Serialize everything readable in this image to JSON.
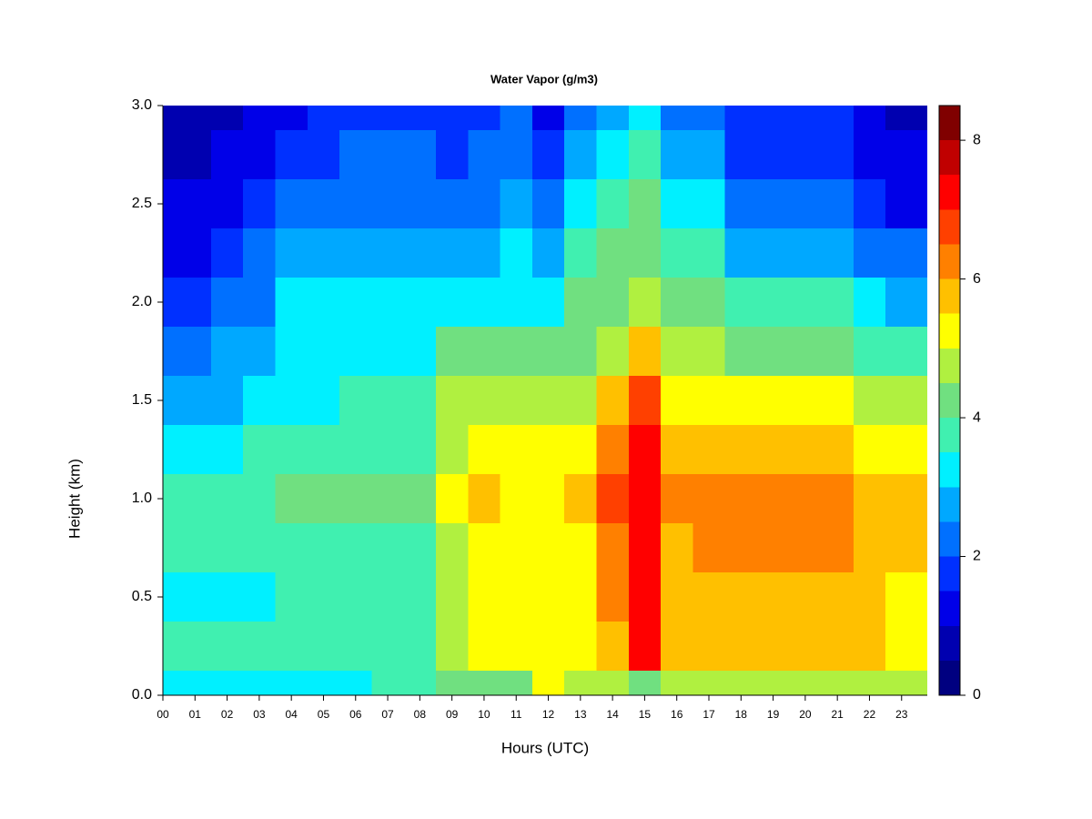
{
  "chart_data": {
    "type": "heatmap",
    "title": "Water Vapor (g/m3)",
    "x_label": "Hours (UTC)",
    "y_label": "Height (km)",
    "x": [
      0,
      1,
      2,
      3,
      4,
      5,
      6,
      7,
      8,
      9,
      10,
      11,
      12,
      13,
      14,
      15,
      16,
      17,
      18,
      19,
      20,
      21,
      22,
      23
    ],
    "y": [
      0,
      0.25,
      0.5,
      0.75,
      1,
      1.25,
      1.5,
      1.75,
      2,
      2.25,
      2.5,
      2.75,
      3
    ],
    "z": [
      [
        3.3,
        3.3,
        3.2,
        3.3,
        3.3,
        3.3,
        3.4,
        3.5,
        3.6,
        4.3,
        4.4,
        4.4,
        5.0,
        4.7,
        4.7,
        4.0,
        4.7,
        4.7,
        4.7,
        4.7,
        4.7,
        4.7,
        4.7,
        4.6
      ],
      [
        3.6,
        3.6,
        3.6,
        3.6,
        3.8,
        3.8,
        3.8,
        3.8,
        3.8,
        4.8,
        5.2,
        5.2,
        5.2,
        5.3,
        5.7,
        7.0,
        5.8,
        5.8,
        5.8,
        5.8,
        5.8,
        5.8,
        5.8,
        5.4
      ],
      [
        3.3,
        3.3,
        3.3,
        3.3,
        3.7,
        3.7,
        3.7,
        3.7,
        3.7,
        4.5,
        5.0,
        5.0,
        5.0,
        5.3,
        6.2,
        7.2,
        5.8,
        5.8,
        5.8,
        5.8,
        5.8,
        5.8,
        5.5,
        5.3
      ],
      [
        3.6,
        3.6,
        3.6,
        3.6,
        3.8,
        3.8,
        3.8,
        3.8,
        3.8,
        4.7,
        5.2,
        5.2,
        5.2,
        5.4,
        6.4,
        7.3,
        5.9,
        6.1,
        6.1,
        6.1,
        6.1,
        6.1,
        5.8,
        5.6
      ],
      [
        3.7,
        3.7,
        3.7,
        3.7,
        4.0,
        4.0,
        4.0,
        4.0,
        4.0,
        5.0,
        5.5,
        5.4,
        5.3,
        5.6,
        6.5,
        7.4,
        6.0,
        6.3,
        6.3,
        6.3,
        6.3,
        6.3,
        5.9,
        5.7
      ],
      [
        3.3,
        3.3,
        3.3,
        3.8,
        3.8,
        3.8,
        3.8,
        3.8,
        3.8,
        4.8,
        5.1,
        5.1,
        5.1,
        5.3,
        6.2,
        7.2,
        5.7,
        5.8,
        5.8,
        5.8,
        5.8,
        5.8,
        5.3,
        5.0
      ],
      [
        2.9,
        2.9,
        2.9,
        3.3,
        3.3,
        3.3,
        3.8,
        3.8,
        3.8,
        4.6,
        4.6,
        4.6,
        4.6,
        4.9,
        5.6,
        6.8,
        5.2,
        5.3,
        5.3,
        5.3,
        5.3,
        5.3,
        4.7,
        4.5
      ],
      [
        2.4,
        2.4,
        2.6,
        2.9,
        3.3,
        3.3,
        3.3,
        3.3,
        3.3,
        4.0,
        4.0,
        4.0,
        4.0,
        4.4,
        4.9,
        5.8,
        4.7,
        4.7,
        4.3,
        4.3,
        4.3,
        4.3,
        3.8,
        3.6
      ],
      [
        1.7,
        1.7,
        2.0,
        2.4,
        3.0,
        3.0,
        3.0,
        3.0,
        3.0,
        3.4,
        3.4,
        3.4,
        3.4,
        4.0,
        4.4,
        4.6,
        4.2,
        4.2,
        3.6,
        3.6,
        3.6,
        3.6,
        3.0,
        2.9
      ],
      [
        1.3,
        1.3,
        1.6,
        2.1,
        2.6,
        2.6,
        2.6,
        2.6,
        2.6,
        2.8,
        2.8,
        3.0,
        2.8,
        3.5,
        4.0,
        4.2,
        3.6,
        3.8,
        2.8,
        2.8,
        2.8,
        2.8,
        2.3,
        2.1
      ],
      [
        1.0,
        1.0,
        1.2,
        1.7,
        2.1,
        2.3,
        2.3,
        2.3,
        2.3,
        2.4,
        2.4,
        2.7,
        2.2,
        3.0,
        3.6,
        4.0,
        3.3,
        3.3,
        2.2,
        2.2,
        2.2,
        2.2,
        1.6,
        1.4
      ],
      [
        0.7,
        0.8,
        1.0,
        1.4,
        1.6,
        1.8,
        2.0,
        2.0,
        2.0,
        1.9,
        2.0,
        2.3,
        1.7,
        2.5,
        3.0,
        3.5,
        2.6,
        2.5,
        1.8,
        1.8,
        1.8,
        1.8,
        1.2,
        1.1
      ],
      [
        0.5,
        0.7,
        0.9,
        1.1,
        1.3,
        1.5,
        1.6,
        1.6,
        1.6,
        1.5,
        1.7,
        2.0,
        1.4,
        2.1,
        2.6,
        3.2,
        2.1,
        2.1,
        1.5,
        1.5,
        1.5,
        1.5,
        1.0,
        0.7
      ]
    ],
    "levels": [
      0,
      0.5,
      1,
      1.5,
      2,
      2.5,
      3,
      3.5,
      4,
      4.5,
      5,
      5.5,
      6,
      6.5,
      7,
      7.5,
      8,
      8.5
    ],
    "colors": [
      "#000080",
      "#0000B0",
      "#0000E8",
      "#0030FF",
      "#0070FF",
      "#00A8FF",
      "#00F0FF",
      "#40F0B0",
      "#70E080",
      "#B0F040",
      "#FFFF00",
      "#FFC000",
      "#FF8000",
      "#FF4000",
      "#FF0000",
      "#C00000",
      "#800000"
    ],
    "xlim": [
      0,
      23.8
    ],
    "ylim": [
      0,
      3
    ],
    "xticks": [
      {
        "value": 0,
        "label": "00"
      },
      {
        "value": 1,
        "label": "01"
      },
      {
        "value": 2,
        "label": "02"
      },
      {
        "value": 3,
        "label": "03"
      },
      {
        "value": 4,
        "label": "04"
      },
      {
        "value": 5,
        "label": "05"
      },
      {
        "value": 6,
        "label": "06"
      },
      {
        "value": 7,
        "label": "07"
      },
      {
        "value": 8,
        "label": "08"
      },
      {
        "value": 9,
        "label": "09"
      },
      {
        "value": 10,
        "label": "10"
      },
      {
        "value": 11,
        "label": "11"
      },
      {
        "value": 12,
        "label": "12"
      },
      {
        "value": 13,
        "label": "13"
      },
      {
        "value": 14,
        "label": "14"
      },
      {
        "value": 15,
        "label": "15"
      },
      {
        "value": 16,
        "label": "16"
      },
      {
        "value": 17,
        "label": "17"
      },
      {
        "value": 18,
        "label": "18"
      },
      {
        "value": 19,
        "label": "19"
      },
      {
        "value": 20,
        "label": "20"
      },
      {
        "value": 21,
        "label": "21"
      },
      {
        "value": 22,
        "label": "22"
      },
      {
        "value": 23,
        "label": "23"
      }
    ],
    "yticks": [
      {
        "value": 0,
        "label": "0.0"
      },
      0.5,
      {
        "value": 1,
        "label": "1.0"
      },
      1.5,
      {
        "value": 2,
        "label": "2.0"
      },
      2.5,
      {
        "value": 3,
        "label": "3.0"
      }
    ],
    "zlim": [
      0,
      8.5
    ],
    "zticks": [
      0,
      2,
      4,
      6,
      8
    ]
  }
}
